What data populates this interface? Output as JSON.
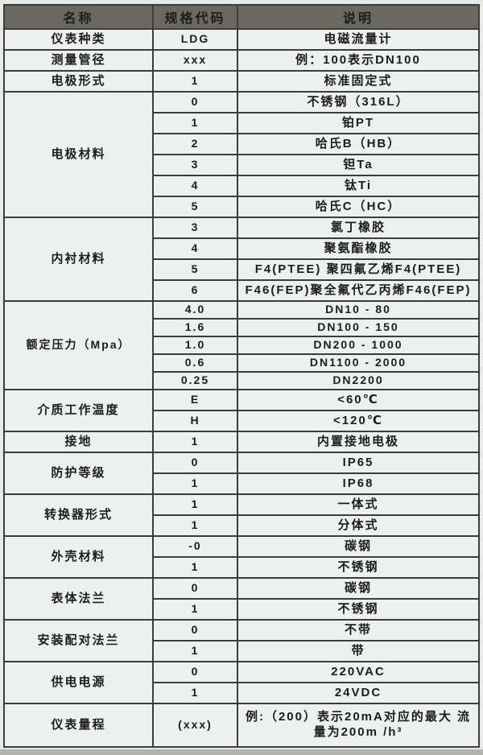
{
  "colors": {
    "page_bg": "#e7e9e6",
    "bottom_shadow": "#b2b3ae",
    "header_bg": "#6b6862",
    "header_text": "#ffffff",
    "cell_bg": "#edf1ed",
    "border": "#3c3c3a",
    "text": "#1c1c1c"
  },
  "table": {
    "headers": [
      "名称",
      "规格代码",
      "说明"
    ],
    "groups": [
      {
        "name": "仪表种类",
        "rows": [
          {
            "code": "LDG",
            "desc": "电磁流量计"
          }
        ]
      },
      {
        "name": "测量管径",
        "rows": [
          {
            "code": "xxx",
            "desc": "例：100表示DN100"
          }
        ]
      },
      {
        "name": "电极形式",
        "rows": [
          {
            "code": "1",
            "desc": "标准固定式"
          }
        ]
      },
      {
        "name": "电极材料",
        "rows": [
          {
            "code": "0",
            "desc": "不锈钢（316L）"
          },
          {
            "code": "1",
            "desc": "铂PT"
          },
          {
            "code": "2",
            "desc": "哈氏B（HB）"
          },
          {
            "code": "3",
            "desc": "钽Ta"
          },
          {
            "code": "4",
            "desc": "钛Ti"
          },
          {
            "code": "5",
            "desc": "哈氏C（HC）"
          }
        ]
      },
      {
        "name": "内衬材料",
        "rows": [
          {
            "code": "3",
            "desc": "氯丁橡胶"
          },
          {
            "code": "4",
            "desc": "聚氨酯橡胶"
          },
          {
            "code": "5",
            "desc": "F4(PTEE) 聚四氟乙烯F4(PTEE)"
          },
          {
            "code": "6",
            "desc": "F46(FEP)聚全氟代乙丙烯F46(FEP)"
          }
        ]
      },
      {
        "name": "额定压力（Mpa）",
        "rows": [
          {
            "code": "4.0",
            "desc": "DN10 - 80"
          },
          {
            "code": "1.6",
            "desc": "DN100 - 150"
          },
          {
            "code": "1.0",
            "desc": "DN200 - 1000"
          },
          {
            "code": "0.6",
            "desc": "DN1100 - 2000"
          },
          {
            "code": "0.25",
            "desc": "DN2200"
          }
        ]
      },
      {
        "name": "介质工作温度",
        "rows": [
          {
            "code": "E",
            "desc": "<60℃"
          },
          {
            "code": "H",
            "desc": "<120℃"
          }
        ]
      },
      {
        "name": "接地",
        "rows": [
          {
            "code": "1",
            "desc": "内置接地电极"
          }
        ]
      },
      {
        "name": "防护等级",
        "rows": [
          {
            "code": "0",
            "desc": "IP65"
          },
          {
            "code": "1",
            "desc": "IP68"
          }
        ]
      },
      {
        "name": "转换器形式",
        "rows": [
          {
            "code": "1",
            "desc": "一体式"
          },
          {
            "code": "1",
            "desc": "分体式"
          }
        ]
      },
      {
        "name": "外壳材料",
        "rows": [
          {
            "code": "-0",
            "desc": "碳钢"
          },
          {
            "code": "1",
            "desc": "不锈钢"
          }
        ]
      },
      {
        "name": "表体法兰",
        "rows": [
          {
            "code": "0",
            "desc": "碳钢"
          },
          {
            "code": "1",
            "desc": "不锈钢"
          }
        ]
      },
      {
        "name": "安装配对法兰",
        "rows": [
          {
            "code": "0",
            "desc": "不带"
          },
          {
            "code": "1",
            "desc": "带"
          }
        ]
      },
      {
        "name": "供电电源",
        "rows": [
          {
            "code": "0",
            "desc": "220VAC"
          },
          {
            "code": "1",
            "desc": "24VDC"
          }
        ]
      },
      {
        "name": "仪表量程",
        "rows": [
          {
            "code": "(xxx)",
            "desc": "例:（200）表示20mA对应的最大 流量为200m /h³"
          }
        ]
      }
    ]
  }
}
